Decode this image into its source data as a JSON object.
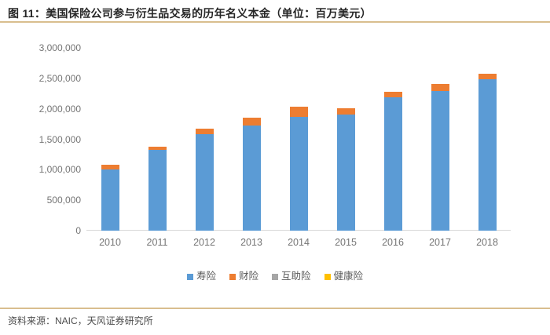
{
  "figure": {
    "title": "图 11：美国保险公司参与衍生品交易的历年名义本金（单位：百万美元）",
    "source": "资料来源：NAIC，天风证券研究所"
  },
  "colors": {
    "accent_rule": "#d9be8e",
    "axis_text": "#757575",
    "baseline": "#d9d9d9",
    "title_text": "#262626"
  },
  "chart_data": {
    "type": "bar",
    "stacked": true,
    "title": "",
    "xlabel": "",
    "ylabel": "",
    "categories": [
      "2010",
      "2011",
      "2012",
      "2013",
      "2014",
      "2015",
      "2016",
      "2017",
      "2018"
    ],
    "series": [
      {
        "name": "寿险",
        "color": "#5b9bd5",
        "values": [
          1010000,
          1325000,
          1580000,
          1725000,
          1870000,
          1900000,
          2185000,
          2290000,
          2480000
        ]
      },
      {
        "name": "财险",
        "color": "#ed7d31",
        "values": [
          75000,
          55000,
          95000,
          130000,
          160000,
          115000,
          95000,
          120000,
          90000
        ]
      },
      {
        "name": "互助险",
        "color": "#a6a6a6",
        "values": [
          0,
          0,
          0,
          0,
          0,
          0,
          0,
          0,
          0
        ]
      },
      {
        "name": "健康险",
        "color": "#ffc000",
        "values": [
          0,
          0,
          0,
          0,
          0,
          0,
          0,
          0,
          0
        ]
      }
    ],
    "totals": [
      1085000,
      1380000,
      1675000,
      1855000,
      2030000,
      2015000,
      2280000,
      2410000,
      2570000
    ],
    "ylim": [
      0,
      3000000
    ],
    "ytick_interval": 500000,
    "grid": false,
    "legend_position": "bottom"
  }
}
